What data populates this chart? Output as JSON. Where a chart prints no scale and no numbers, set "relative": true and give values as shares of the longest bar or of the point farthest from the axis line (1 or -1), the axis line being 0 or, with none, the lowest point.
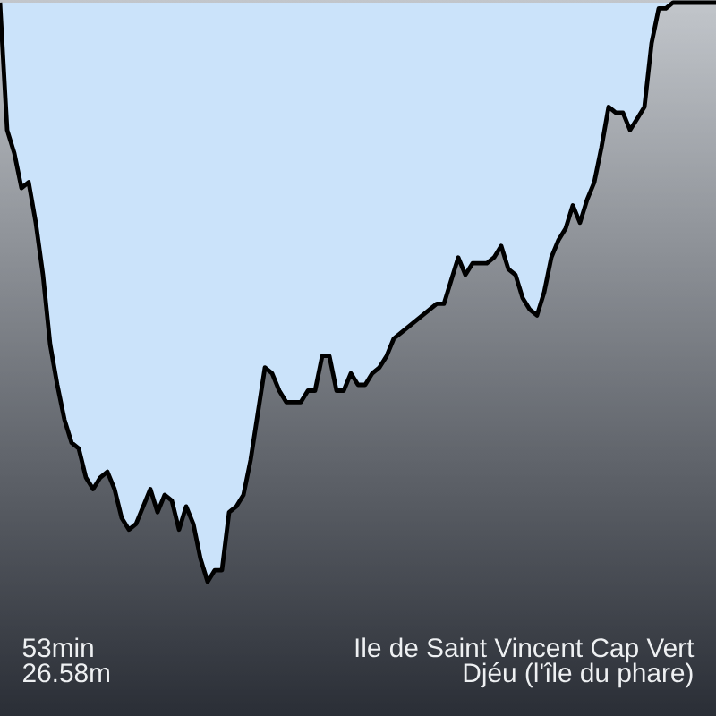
{
  "chart_data": {
    "type": "area",
    "relative": true,
    "color": "#cbe3fa",
    "categories": [
      null,
      null,
      null,
      null,
      null,
      null,
      null,
      null,
      null,
      null,
      null,
      null,
      null,
      null,
      null,
      null,
      null,
      null,
      null,
      null,
      null,
      null,
      null,
      null,
      null,
      null,
      null,
      null,
      null,
      null,
      null,
      null,
      null,
      null,
      null,
      null,
      null,
      null,
      null,
      null,
      null,
      null,
      null,
      null,
      null,
      null,
      null,
      null,
      null,
      null,
      null,
      null,
      null,
      null,
      null,
      null,
      null,
      null,
      null,
      null,
      null,
      null,
      null,
      null,
      null,
      null,
      null,
      null,
      null,
      null,
      null,
      null,
      null,
      null,
      null,
      null,
      null,
      null,
      null,
      null,
      null,
      null,
      null,
      null,
      null,
      null,
      null,
      null,
      null,
      null,
      null,
      null,
      null,
      null,
      null,
      null,
      null,
      null,
      null,
      null,
      null
    ],
    "values": [
      0,
      -0.22,
      -0.26,
      -0.32,
      -0.31,
      -0.38,
      -0.47,
      -0.59,
      -0.66,
      -0.72,
      -0.76,
      -0.77,
      -0.82,
      -0.84,
      -0.82,
      -0.81,
      -0.84,
      -0.89,
      -0.91,
      -0.9,
      -0.87,
      -0.84,
      -0.88,
      -0.85,
      -0.86,
      -0.91,
      -0.87,
      -0.9,
      -0.96,
      -1,
      -0.98,
      -0.98,
      -0.88,
      -0.87,
      -0.85,
      -0.79,
      -0.71,
      -0.63,
      -0.64,
      -0.67,
      -0.69,
      -0.69,
      -0.69,
      -0.67,
      -0.67,
      -0.61,
      -0.61,
      -0.67,
      -0.67,
      -0.64,
      -0.66,
      -0.66,
      -0.64,
      -0.63,
      -0.61,
      -0.58,
      -0.57,
      -0.56,
      -0.55,
      -0.54,
      -0.53,
      -0.52,
      -0.52,
      -0.48,
      -0.44,
      -0.47,
      -0.45,
      -0.45,
      -0.45,
      -0.44,
      -0.42,
      -0.46,
      -0.47,
      -0.51,
      -0.53,
      -0.54,
      -0.5,
      -0.44,
      -0.41,
      -0.39,
      -0.35,
      -0.38,
      -0.34,
      -0.31,
      -0.25,
      -0.18,
      -0.19,
      -0.19,
      -0.22,
      -0.2,
      -0.18,
      -0.07,
      -0.01,
      -0.01,
      0,
      0,
      0,
      0,
      0,
      0,
      0
    ],
    "annotations": [
      "53min",
      "26.58m",
      "Ile de Saint Vincent Cap Vert",
      "Djéu (l'île du phare)"
    ]
  }
}
